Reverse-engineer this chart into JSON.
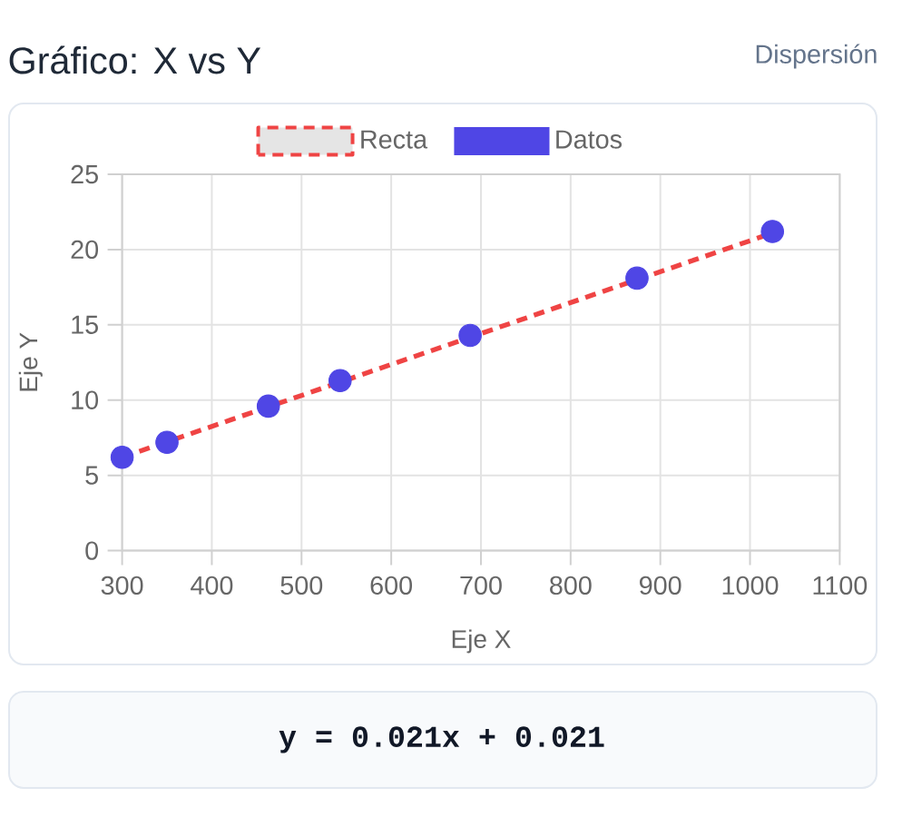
{
  "chart_data": {
    "type": "scatter",
    "title": "Gráfico: X vs Y",
    "subtitle": "Dispersión",
    "xlabel": "Eje X",
    "ylabel": "Eje Y",
    "annotations": [
      "y = 0.021x + 0.021"
    ],
    "series": [
      {
        "name": "Recta",
        "type": "line",
        "color": "#ef4444",
        "line_style": "dashed",
        "marker": "none",
        "x": [
          300,
          1025
        ],
        "values": [
          6.2,
          21.1
        ]
      },
      {
        "name": "Datos",
        "type": "scatter",
        "color": "#4f46e5",
        "marker": "circle",
        "x": [
          300,
          350,
          463,
          543,
          688,
          874,
          1025
        ],
        "values": [
          6.2,
          7.2,
          9.6,
          11.3,
          14.3,
          18.1,
          21.2
        ]
      }
    ],
    "xlim": [
      300,
      1100
    ],
    "ylim": [
      0,
      25
    ],
    "xticks": [
      300,
      400,
      500,
      600,
      700,
      800,
      900,
      1000,
      1100
    ],
    "yticks": [
      0,
      5,
      10,
      15,
      20,
      25
    ],
    "grid": true,
    "legend": "top"
  }
}
